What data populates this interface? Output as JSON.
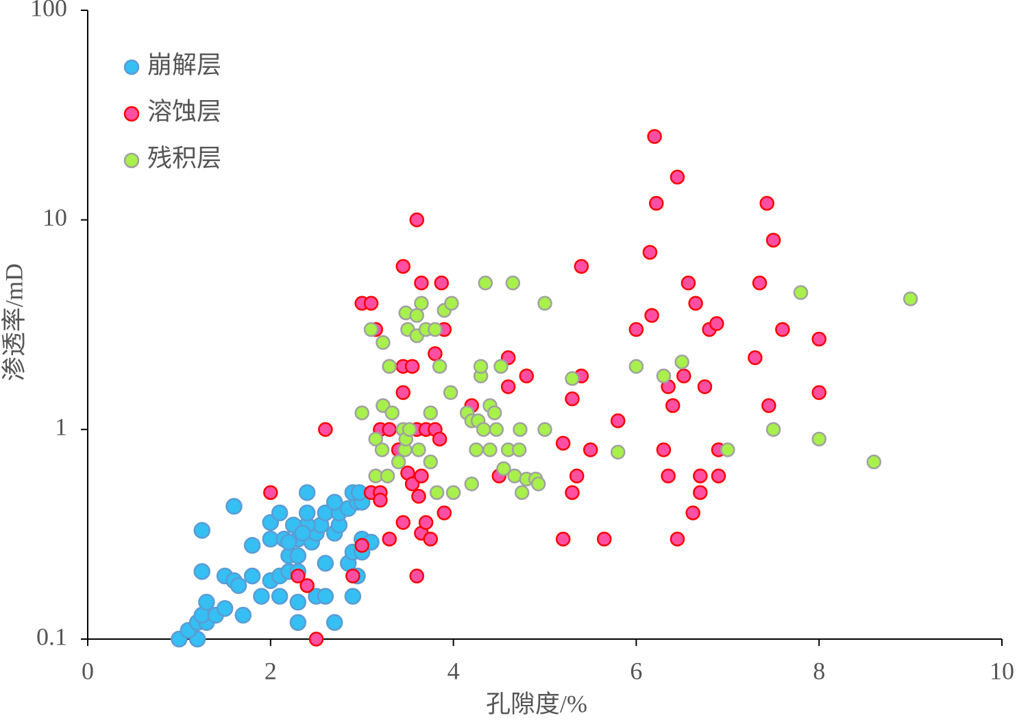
{
  "chart_data": {
    "type": "scatter",
    "xlabel": "孔隙度/%",
    "ylabel": "渗透率/mD",
    "xlim": [
      0,
      10
    ],
    "xticks": [
      0,
      2,
      4,
      6,
      8,
      10
    ],
    "ylim": [
      0.1,
      100
    ],
    "yticks": [
      0.1,
      1,
      10,
      100
    ],
    "ylog": true,
    "legend": "upper left",
    "series": [
      {
        "name": "崩解层",
        "color": "#35bff2",
        "edgecolor": "#5b9bd5",
        "x": [
          1.0,
          1.2,
          1.1,
          1.2,
          1.3,
          1.25,
          1.4,
          1.3,
          1.5,
          1.7,
          1.9,
          2.1,
          2.3,
          2.3,
          2.5,
          2.6,
          2.7,
          2.9,
          1.25,
          1.5,
          1.6,
          1.65,
          1.8,
          2.0,
          2.1,
          2.2,
          2.3,
          2.2,
          2.3,
          2.6,
          2.85,
          2.9,
          3.0,
          3.0,
          3.1,
          2.95,
          1.25,
          1.8,
          2.0,
          2.15,
          2.3,
          2.45,
          2.5,
          2.7,
          2.75,
          2.55,
          2.4,
          2.25,
          2.0,
          2.1,
          2.4,
          2.6,
          2.75,
          2.85,
          2.7,
          2.95,
          3.0,
          2.9,
          2.97,
          2.4,
          1.6,
          2.35,
          2.2
        ],
        "values": [
          0.1,
          0.1,
          0.11,
          0.12,
          0.12,
          0.13,
          0.13,
          0.15,
          0.14,
          0.13,
          0.16,
          0.16,
          0.15,
          0.12,
          0.16,
          0.16,
          0.12,
          0.16,
          0.21,
          0.2,
          0.19,
          0.18,
          0.2,
          0.19,
          0.2,
          0.21,
          0.21,
          0.25,
          0.25,
          0.23,
          0.23,
          0.26,
          0.26,
          0.3,
          0.29,
          0.2,
          0.33,
          0.28,
          0.3,
          0.3,
          0.3,
          0.29,
          0.32,
          0.32,
          0.35,
          0.35,
          0.35,
          0.35,
          0.36,
          0.4,
          0.4,
          0.4,
          0.4,
          0.42,
          0.45,
          0.45,
          0.45,
          0.5,
          0.5,
          0.5,
          0.43,
          0.32,
          0.29
        ]
      },
      {
        "name": "溶蚀层",
        "color": "#ff4fa3",
        "edgecolor": "#ff0000",
        "x": [
          2.0,
          2.5,
          2.3,
          2.4,
          2.9,
          3.0,
          2.6,
          3.0,
          3.1,
          3.15,
          3.1,
          3.2,
          3.2,
          3.2,
          3.3,
          3.3,
          3.3,
          3.4,
          3.45,
          3.45,
          3.45,
          3.5,
          3.55,
          3.55,
          3.6,
          3.6,
          3.62,
          3.65,
          3.65,
          3.65,
          3.7,
          3.7,
          3.75,
          3.8,
          3.8,
          3.85,
          3.87,
          3.9,
          3.9,
          3.6,
          3.45,
          4.2,
          4.5,
          4.6,
          4.6,
          4.8,
          5.2,
          5.2,
          5.3,
          5.3,
          5.35,
          5.4,
          5.4,
          5.5,
          5.65,
          5.8,
          6.0,
          6.15,
          6.17,
          6.2,
          6.22,
          6.3,
          6.35,
          6.35,
          6.4,
          6.45,
          6.45,
          6.52,
          6.57,
          6.62,
          6.65,
          6.7,
          6.7,
          6.75,
          6.8,
          6.88,
          6.9,
          6.9,
          7.3,
          7.35,
          7.43,
          7.45,
          7.5,
          7.6,
          8.0,
          8.0
        ],
        "values": [
          0.5,
          0.1,
          0.2,
          0.18,
          0.2,
          0.28,
          1.0,
          4,
          4,
          3,
          0.5,
          0.5,
          0.46,
          1.0,
          1.0,
          2.0,
          0.3,
          0.8,
          6,
          2,
          1.5,
          0.62,
          0.55,
          2,
          10,
          1.0,
          0.48,
          5,
          0.6,
          0.32,
          1.0,
          0.36,
          0.3,
          2.3,
          1.0,
          0.9,
          5,
          3,
          0.4,
          0.2,
          0.36,
          1.3,
          0.6,
          2.2,
          1.6,
          1.8,
          0.3,
          0.86,
          0.5,
          1.4,
          0.6,
          6,
          1.8,
          0.8,
          0.3,
          1.1,
          3,
          7,
          3.5,
          25,
          12,
          0.8,
          1.6,
          0.6,
          1.3,
          16,
          0.3,
          1.8,
          5,
          0.4,
          4,
          0.6,
          0.5,
          1.6,
          3,
          3.2,
          0.8,
          0.6,
          2.2,
          5,
          12,
          1.3,
          8,
          3,
          2.7,
          1.5
        ]
      },
      {
        "name": "残积层",
        "color": "#a8f04c",
        "edgecolor": "#a0a0a0",
        "x": [
          3.0,
          3.1,
          3.15,
          3.15,
          3.22,
          3.23,
          3.23,
          3.28,
          3.3,
          3.33,
          3.4,
          3.45,
          3.47,
          3.48,
          3.48,
          3.5,
          3.52,
          3.6,
          3.6,
          3.62,
          3.65,
          3.7,
          3.75,
          3.75,
          3.8,
          3.82,
          3.85,
          3.9,
          3.97,
          3.98,
          4.0,
          4.15,
          4.2,
          4.2,
          4.25,
          4.27,
          4.3,
          4.3,
          4.33,
          4.35,
          4.4,
          4.4,
          4.45,
          4.47,
          4.52,
          4.55,
          4.6,
          4.65,
          4.67,
          4.72,
          4.73,
          4.75,
          4.8,
          4.9,
          4.93,
          5.0,
          5.0,
          5.3,
          5.8,
          6.0,
          6.3,
          6.5,
          7.0,
          7.5,
          7.8,
          8.0,
          8.6,
          9.0
        ],
        "values": [
          1.2,
          3,
          0.9,
          0.6,
          0.8,
          2.6,
          1.3,
          0.6,
          2,
          1.2,
          0.7,
          1.0,
          0.8,
          0.9,
          3.6,
          3,
          1.0,
          2.8,
          3.5,
          0.8,
          4,
          3,
          1.2,
          0.7,
          3,
          0.5,
          2,
          3.7,
          1.5,
          4,
          0.5,
          1.2,
          1.1,
          0.55,
          0.8,
          1.1,
          1.8,
          2,
          1.0,
          5,
          1.3,
          0.8,
          1.2,
          1.0,
          2,
          0.65,
          0.8,
          5,
          0.6,
          0.8,
          1.0,
          0.5,
          0.58,
          0.58,
          0.55,
          4,
          1.0,
          1.75,
          0.78,
          2,
          1.8,
          2.1,
          0.8,
          1.0,
          4.5,
          0.9,
          0.7,
          4.2
        ]
      }
    ]
  }
}
